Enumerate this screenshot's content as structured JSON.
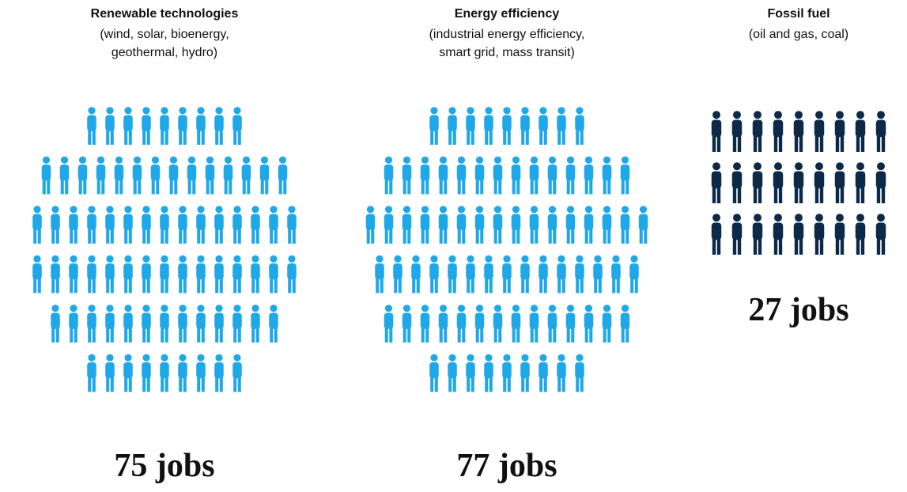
{
  "chart_data": {
    "type": "pictogram",
    "categories": [
      "Renewable technologies",
      "Energy efficiency",
      "Fossil fuel"
    ],
    "subtitles": [
      [
        "(wind, solar, bioenergy,",
        "geothermal, hydro)"
      ],
      [
        "(industrial energy efficiency,",
        "smart grid, mass transit)"
      ],
      [
        "(oil and gas, coal)"
      ]
    ],
    "values": [
      75,
      77,
      27
    ],
    "value_labels": [
      "75 jobs",
      "77 jobs",
      "27 jobs"
    ],
    "colors": [
      "#1fa8e8",
      "#1fa8e8",
      "#0c2a47"
    ]
  }
}
